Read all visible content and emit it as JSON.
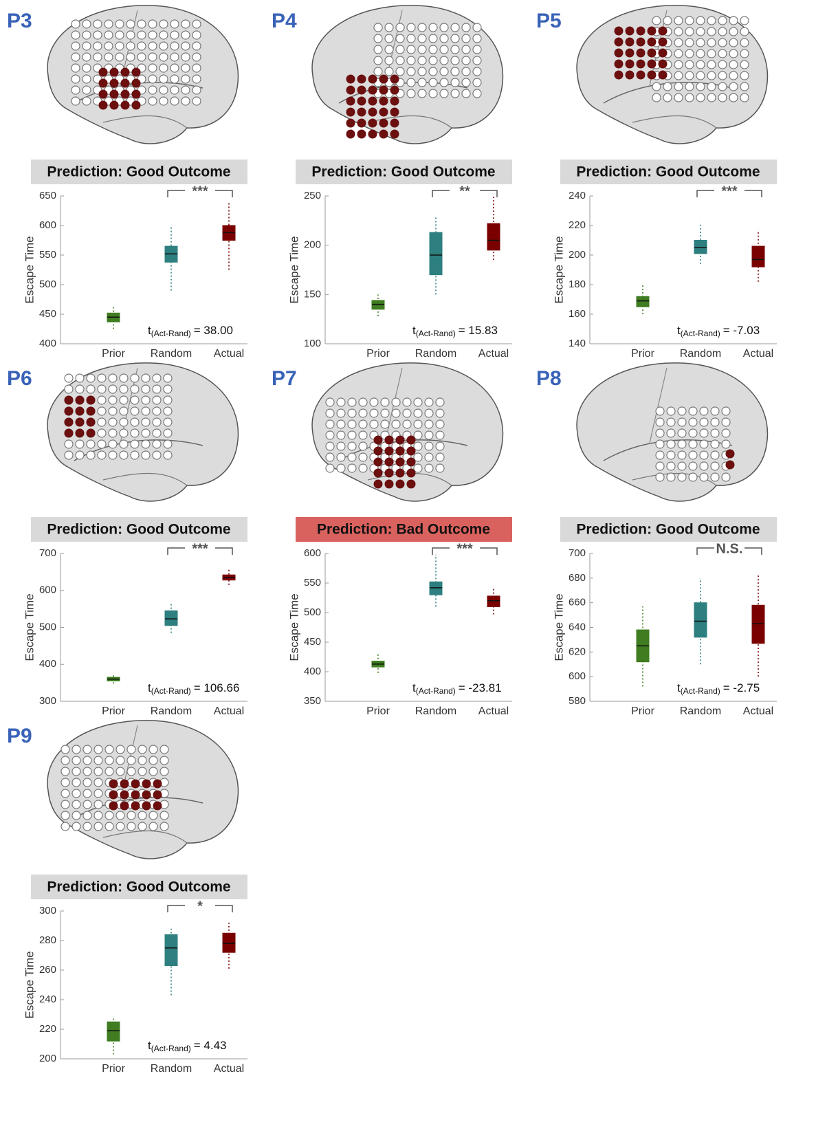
{
  "chart_data": [
    {
      "type": "box",
      "title": "P3",
      "subtitle": "Prediction: Good Outcome",
      "outcome_color": "#d9d9d9",
      "y_label": "Escape Time",
      "categories": [
        "Prior",
        "Random",
        "Actual"
      ],
      "colors": [
        "#3f7d20",
        "#2e7f7f",
        "#7a0000"
      ],
      "boxes": [
        {
          "min": 425,
          "q1": 437,
          "median": 445,
          "q3": 452,
          "max": 465
        },
        {
          "min": 490,
          "q1": 538,
          "median": 552,
          "q3": 565,
          "max": 600
        },
        {
          "min": 525,
          "q1": 575,
          "median": 588,
          "q3": 600,
          "max": 640
        }
      ],
      "ylim": [
        400,
        650
      ],
      "yticks": [
        400,
        450,
        500,
        550,
        600,
        650
      ],
      "significance": "***",
      "stat_symbol": "t",
      "stat_subscript": "(Act-Rand)",
      "stat_text": "= 38.00"
    },
    {
      "type": "box",
      "title": "P4",
      "subtitle": "Prediction: Good Outcome",
      "outcome_color": "#d9d9d9",
      "y_label": "Escape Time",
      "categories": [
        "Prior",
        "Random",
        "Actual"
      ],
      "colors": [
        "#3f7d20",
        "#2e7f7f",
        "#7a0000"
      ],
      "boxes": [
        {
          "min": 128,
          "q1": 135,
          "median": 140,
          "q3": 144,
          "max": 150
        },
        {
          "min": 150,
          "q1": 170,
          "median": 190,
          "q3": 213,
          "max": 230
        },
        {
          "min": 185,
          "q1": 195,
          "median": 205,
          "q3": 222,
          "max": 250
        }
      ],
      "ylim": [
        100,
        250
      ],
      "yticks": [
        100,
        150,
        200,
        250
      ],
      "significance": "**",
      "stat_symbol": "t",
      "stat_subscript": "(Act-Rand)",
      "stat_text": "= 15.83"
    },
    {
      "type": "box",
      "title": "P5",
      "subtitle": "Prediction: Good Outcome",
      "outcome_color": "#d9d9d9",
      "y_label": "Escape Time",
      "categories": [
        "Prior",
        "Random",
        "Actual"
      ],
      "colors": [
        "#3f7d20",
        "#2e7f7f",
        "#7a0000"
      ],
      "boxes": [
        {
          "min": 160,
          "q1": 165,
          "median": 169,
          "q3": 172,
          "max": 181
        },
        {
          "min": 194,
          "q1": 201,
          "median": 205,
          "q3": 210,
          "max": 222
        },
        {
          "min": 182,
          "q1": 192,
          "median": 197,
          "q3": 206,
          "max": 217
        }
      ],
      "ylim": [
        140,
        240
      ],
      "yticks": [
        140,
        160,
        180,
        200,
        220,
        240
      ],
      "significance": "***",
      "stat_symbol": "t",
      "stat_subscript": "(Act-Rand)",
      "stat_text": "= -7.03"
    },
    {
      "type": "box",
      "title": "P6",
      "subtitle": "Prediction: Good Outcome",
      "outcome_color": "#d9d9d9",
      "y_label": "Escape Time",
      "categories": [
        "Prior",
        "Random",
        "Actual"
      ],
      "colors": [
        "#3f7d20",
        "#2e7f7f",
        "#7a0000"
      ],
      "boxes": [
        {
          "min": 348,
          "q1": 355,
          "median": 360,
          "q3": 365,
          "max": 373
        },
        {
          "min": 485,
          "q1": 505,
          "median": 523,
          "q3": 545,
          "max": 565
        },
        {
          "min": 615,
          "q1": 628,
          "median": 635,
          "q3": 642,
          "max": 660
        }
      ],
      "ylim": [
        300,
        700
      ],
      "yticks": [
        300,
        400,
        500,
        600,
        700
      ],
      "significance": "***",
      "stat_symbol": "t",
      "stat_subscript": "(Act-Rand)",
      "stat_text": "= 106.66"
    },
    {
      "type": "box",
      "title": "P7",
      "subtitle": "Prediction: Bad Outcome",
      "outcome_color": "#d9625f",
      "y_label": "Escape Time",
      "categories": [
        "Prior",
        "Random",
        "Actual"
      ],
      "colors": [
        "#3f7d20",
        "#2e7f7f",
        "#7a0000"
      ],
      "boxes": [
        {
          "min": 398,
          "q1": 408,
          "median": 413,
          "q3": 418,
          "max": 432
        },
        {
          "min": 510,
          "q1": 530,
          "median": 542,
          "q3": 552,
          "max": 598
        },
        {
          "min": 497,
          "q1": 510,
          "median": 520,
          "q3": 528,
          "max": 543
        }
      ],
      "ylim": [
        350,
        600
      ],
      "yticks": [
        350,
        400,
        450,
        500,
        550,
        600
      ],
      "significance": "***",
      "stat_symbol": "t",
      "stat_subscript": "(Act-Rand)",
      "stat_text": "= -23.81"
    },
    {
      "type": "box",
      "title": "P8",
      "subtitle": "Prediction: Good Outcome",
      "outcome_color": "#d9d9d9",
      "y_label": "Escape Time",
      "categories": [
        "Prior",
        "Random",
        "Actual"
      ],
      "colors": [
        "#3f7d20",
        "#2e7f7f",
        "#7a0000"
      ],
      "boxes": [
        {
          "min": 592,
          "q1": 612,
          "median": 625,
          "q3": 638,
          "max": 657
        },
        {
          "min": 610,
          "q1": 632,
          "median": 645,
          "q3": 660,
          "max": 680
        },
        {
          "min": 600,
          "q1": 627,
          "median": 643,
          "q3": 658,
          "max": 683
        }
      ],
      "ylim": [
        580,
        700
      ],
      "yticks": [
        580,
        600,
        620,
        640,
        660,
        680,
        700
      ],
      "significance": "N.S.",
      "stat_symbol": "t",
      "stat_subscript": "(Act-Rand)",
      "stat_text": "= -2.75"
    },
    {
      "type": "box",
      "title": "P9",
      "subtitle": "Prediction: Good Outcome",
      "outcome_color": "#d9d9d9",
      "y_label": "Escape Time",
      "categories": [
        "Prior",
        "Random",
        "Actual"
      ],
      "colors": [
        "#3f7d20",
        "#2e7f7f",
        "#7a0000"
      ],
      "boxes": [
        {
          "min": 203,
          "q1": 212,
          "median": 219,
          "q3": 225,
          "max": 228
        },
        {
          "min": 243,
          "q1": 263,
          "median": 275,
          "q3": 284,
          "max": 288
        },
        {
          "min": 261,
          "q1": 272,
          "median": 278,
          "q3": 285,
          "max": 292
        }
      ],
      "ylim": [
        200,
        300
      ],
      "yticks": [
        200,
        220,
        240,
        260,
        280,
        300
      ],
      "significance": "*",
      "stat_symbol": "t",
      "stat_subscript": "(Act-Rand)",
      "stat_text": "= 4.43"
    }
  ]
}
